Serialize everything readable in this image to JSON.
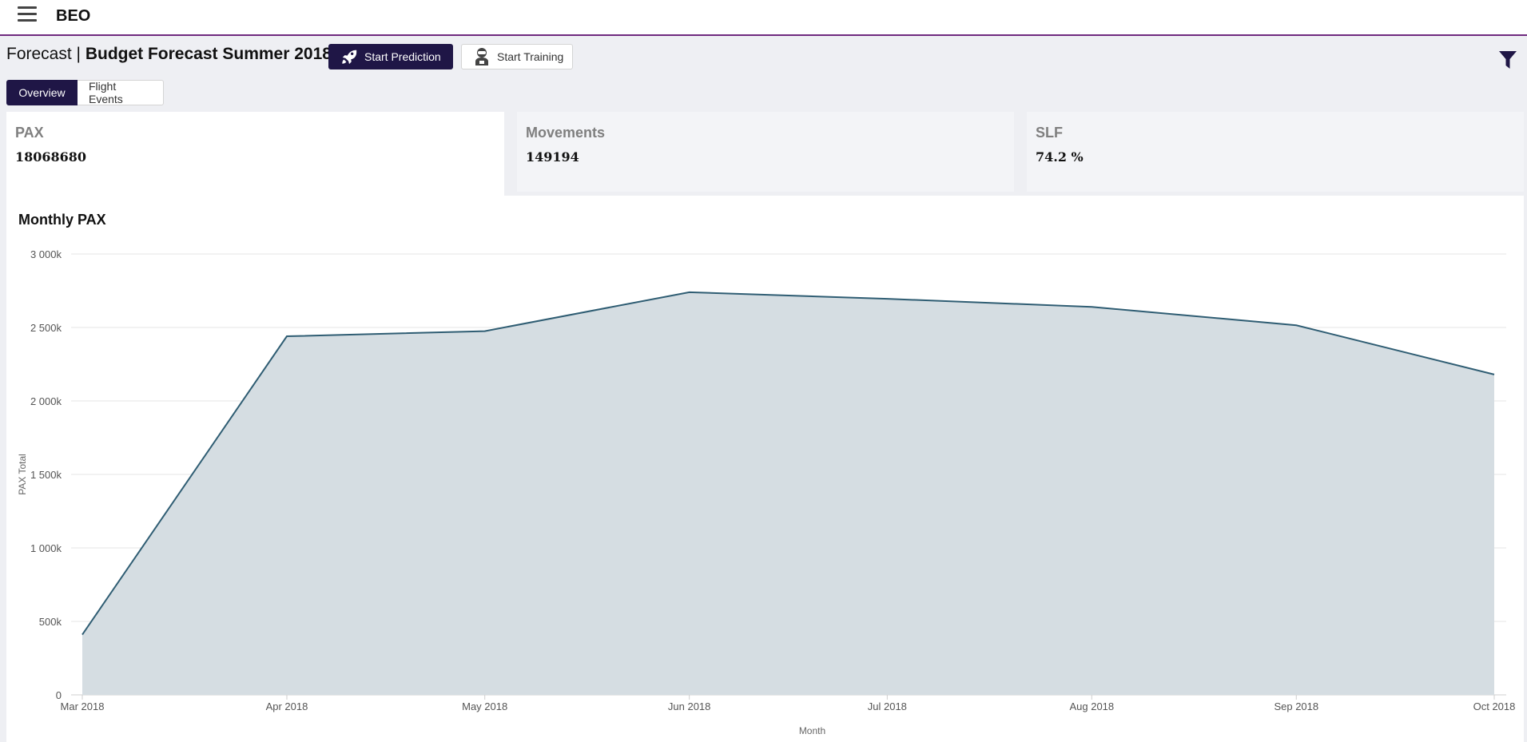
{
  "header": {
    "brand": "BEO"
  },
  "page": {
    "prefix": "Forecast | ",
    "title": "Budget Forecast Summer 2018"
  },
  "actions": {
    "start_prediction": "Start Prediction",
    "start_training": "Start Training"
  },
  "tabs": [
    {
      "label": "Overview",
      "active": true
    },
    {
      "label": "Flight Events",
      "active": false
    }
  ],
  "kpis": [
    {
      "label": "PAX",
      "value": "18068680"
    },
    {
      "label": "Movements",
      "value": "149194"
    },
    {
      "label": "SLF",
      "value": "74.2 %"
    }
  ],
  "colors": {
    "accent": "#1f1646",
    "topbar_border": "#6f2a7e",
    "line": "#2f5d73",
    "area": "#d5dde2"
  },
  "icons": {
    "menu": "hamburger-icon",
    "prediction": "rocket-icon",
    "training": "robot-icon",
    "filter": "filter-icon"
  },
  "chart_data": {
    "type": "area",
    "title": "Monthly PAX",
    "xlabel": "Month",
    "ylabel": "PAX Total",
    "x": [
      "Mar 2018",
      "Apr 2018",
      "May 2018",
      "Jun 2018",
      "Jul 2018",
      "Aug 2018",
      "Sep 2018",
      "Oct 2018"
    ],
    "x_dates": [
      "2018-03-01",
      "2018-04-01",
      "2018-05-01",
      "2018-06-01",
      "2018-07-01",
      "2018-08-01",
      "2018-09-01",
      "2018-10-01"
    ],
    "series": [
      {
        "x": [
          "2018-03-01",
          "2018-04-01",
          "2018-05-01",
          "2018-06-01",
          "2018-07-01",
          "2018-08-01",
          "2018-09-01",
          "2018-10-01"
        ],
        "values": [
          410000,
          2440000,
          2475000,
          2740000,
          2695000,
          2640000,
          2515000,
          2180000
        ]
      }
    ],
    "ylim": [
      0,
      3000000
    ],
    "yticks": [
      0,
      500000,
      1000000,
      1500000,
      2000000,
      2500000,
      3000000
    ],
    "ytick_labels": [
      "0",
      "500k",
      "1 000k",
      "1 500k",
      "2 000k",
      "2 500k",
      "3 000k"
    ],
    "grid": true
  }
}
